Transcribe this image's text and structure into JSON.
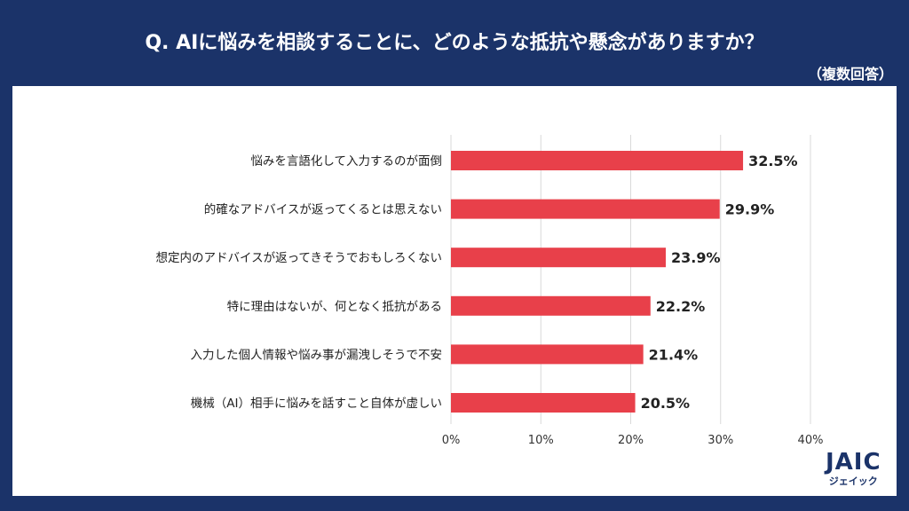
{
  "title": "Q. AIに悩みを相談することに、どのような抵抗や懸念がありますか？",
  "note": "（複数回答）",
  "logo": {
    "mark": "JAIC",
    "kana": "ジェイック"
  },
  "colors": {
    "background": "#1b3369",
    "bar": "#e8404a"
  },
  "chart_data": {
    "type": "bar",
    "orientation": "horizontal",
    "categories": [
      "悩みを言語化して入力するのが面倒",
      "的確なアドバイスが返ってくるとは思えない",
      "想定内のアドバイスが返ってきそうでおもしろくない",
      "特に理由はないが、何となく抵抗がある",
      "入力した個人情報や悩み事が漏洩しそうで不安",
      "機械（AI）相手に悩みを話すこと自体が虚しい"
    ],
    "values": [
      32.5,
      29.9,
      23.9,
      22.2,
      21.4,
      20.5
    ],
    "data_labels": [
      "32.5%",
      "29.9%",
      "23.9%",
      "22.2%",
      "21.4%",
      "20.5%"
    ],
    "xlim": [
      0,
      40
    ],
    "x_ticks": [
      "0%",
      "10%",
      "20%",
      "30%",
      "40%"
    ],
    "grid": true
  }
}
